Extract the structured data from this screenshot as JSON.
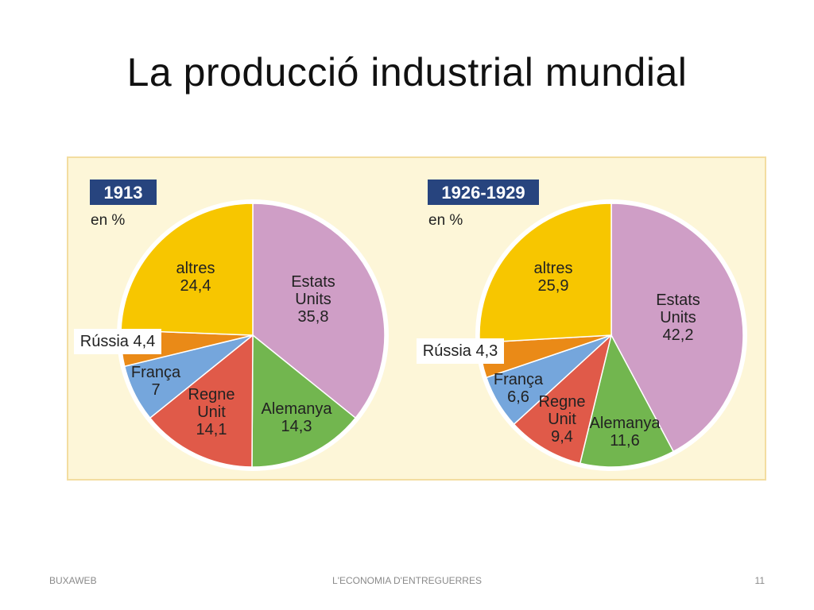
{
  "slide": {
    "title": "La producció industrial mundial"
  },
  "footer": {
    "left": "BUXAWEB",
    "center": "L'ECONOMIA D'ENTREGUERRES",
    "page_number": "11"
  },
  "colors": {
    "panel_background": "#fdf6d8",
    "year_badge": "#27447e",
    "estats_units": "#cf9ec6",
    "alemanya": "#72b64f",
    "regne_unit": "#e05a49",
    "franca": "#75a6dc",
    "russia": "#ea8a17",
    "altres": "#f7c600"
  },
  "chart_data": [
    {
      "type": "pie",
      "title": "1913",
      "subtitle": "en %",
      "slices": [
        {
          "label": "Estats Units",
          "lines": [
            "Estats",
            "Units"
          ],
          "value_label": "35,8",
          "value": 35.8,
          "color": "#cf9ec6"
        },
        {
          "label": "Alemanya",
          "lines": [
            "Alemanya"
          ],
          "value_label": "14,3",
          "value": 14.3,
          "color": "#72b64f"
        },
        {
          "label": "Regne Unit",
          "lines": [
            "Regne",
            "Unit"
          ],
          "value_label": "14,1",
          "value": 14.1,
          "color": "#e05a49"
        },
        {
          "label": "França",
          "lines": [
            "França"
          ],
          "value_label": "7",
          "value": 7,
          "color": "#75a6dc"
        },
        {
          "label": "Rússia",
          "lines": [
            "Rússia 4,4"
          ],
          "value_label": "4,4",
          "value": 4.4,
          "color": "#ea8a17"
        },
        {
          "label": "altres",
          "lines": [
            "altres"
          ],
          "value_label": "24,4",
          "value": 24.4,
          "color": "#f7c600"
        }
      ]
    },
    {
      "type": "pie",
      "title": "1926-1929",
      "subtitle": "en %",
      "slices": [
        {
          "label": "Estats Units",
          "lines": [
            "Estats",
            "Units"
          ],
          "value_label": "42,2",
          "value": 42.2,
          "color": "#cf9ec6"
        },
        {
          "label": "Alemanya",
          "lines": [
            "Alemanya"
          ],
          "value_label": "11,6",
          "value": 11.6,
          "color": "#72b64f"
        },
        {
          "label": "Regne Unit",
          "lines": [
            "Regne",
            "Unit"
          ],
          "value_label": "9,4",
          "value": 9.4,
          "color": "#e05a49"
        },
        {
          "label": "França",
          "lines": [
            "França"
          ],
          "value_label": "6,6",
          "value": 6.6,
          "color": "#75a6dc"
        },
        {
          "label": "Rússia",
          "lines": [
            "Rússia 4,3"
          ],
          "value_label": "4,3",
          "value": 4.3,
          "color": "#ea8a17"
        },
        {
          "label": "altres",
          "lines": [
            "altres"
          ],
          "value_label": "25,9",
          "value": 25.9,
          "color": "#f7c600"
        }
      ]
    }
  ]
}
